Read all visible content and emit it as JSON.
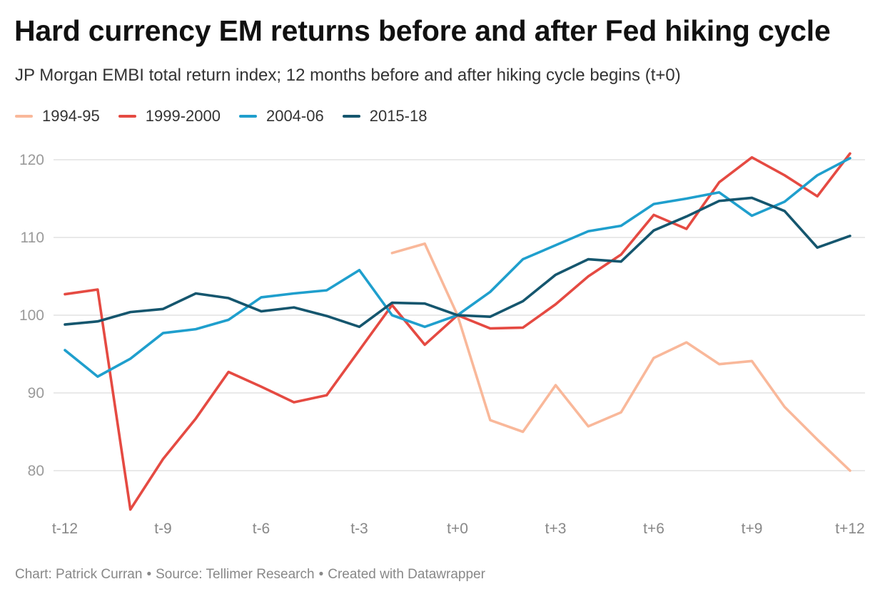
{
  "chart_data": {
    "type": "line",
    "title": "Hard currency EM returns before and after Fed hiking cycle",
    "subtitle": "JP Morgan EMBI total return index; 12 months before and after hiking cycle begins (t+0)",
    "xlabel": "",
    "ylabel": "",
    "x": [
      "t-12",
      "t-11",
      "t-10",
      "t-9",
      "t-8",
      "t-7",
      "t-6",
      "t-5",
      "t-4",
      "t-3",
      "t-2",
      "t-1",
      "t+0",
      "t+1",
      "t+2",
      "t+3",
      "t+4",
      "t+5",
      "t+6",
      "t+7",
      "t+8",
      "t+9",
      "t+10",
      "t+11",
      "t+12"
    ],
    "xticks": [
      "t-12",
      "t-9",
      "t-6",
      "t-3",
      "t+0",
      "t+3",
      "t+6",
      "t+9",
      "t+12"
    ],
    "ylim": [
      75,
      121
    ],
    "yticks": [
      80,
      90,
      100,
      110,
      120
    ],
    "grid": true,
    "legend_position": "top-left",
    "series": [
      {
        "name": "1994-95",
        "color": "#f9b89a",
        "values": [
          null,
          null,
          null,
          null,
          null,
          null,
          null,
          null,
          null,
          null,
          108.0,
          109.2,
          100.0,
          86.5,
          85.0,
          91.0,
          85.7,
          87.5,
          94.5,
          96.5,
          93.7,
          94.1,
          88.2,
          84.0,
          80.0
        ]
      },
      {
        "name": "1999-2000",
        "color": "#e54a42",
        "values": [
          102.7,
          103.3,
          75.0,
          81.5,
          86.7,
          92.7,
          90.8,
          88.8,
          89.7,
          95.5,
          101.3,
          96.2,
          100.0,
          98.3,
          98.4,
          101.4,
          105.0,
          107.8,
          112.9,
          111.1,
          117.1,
          120.3,
          118.0,
          115.3,
          120.8
        ]
      },
      {
        "name": "2004-06",
        "color": "#1f9fcd",
        "values": [
          95.5,
          92.1,
          94.4,
          97.7,
          98.2,
          99.4,
          102.3,
          102.8,
          103.2,
          105.8,
          100.0,
          98.5,
          100.0,
          103.0,
          107.2,
          109.0,
          110.8,
          111.5,
          114.3,
          115.0,
          115.8,
          112.8,
          114.6,
          118.0,
          120.2
        ]
      },
      {
        "name": "2015-18",
        "color": "#15566e",
        "values": [
          98.8,
          99.2,
          100.4,
          100.8,
          102.8,
          102.2,
          100.5,
          101.0,
          99.9,
          98.5,
          101.6,
          101.5,
          100.0,
          99.8,
          101.8,
          105.2,
          107.2,
          106.9,
          110.9,
          112.7,
          114.7,
          115.1,
          113.4,
          108.7,
          110.2
        ]
      }
    ]
  },
  "footer": {
    "chart_credit": "Chart: Patrick Curran",
    "source": "Source: Tellimer Research",
    "created_with": "Created with Datawrapper",
    "separator": "•"
  }
}
